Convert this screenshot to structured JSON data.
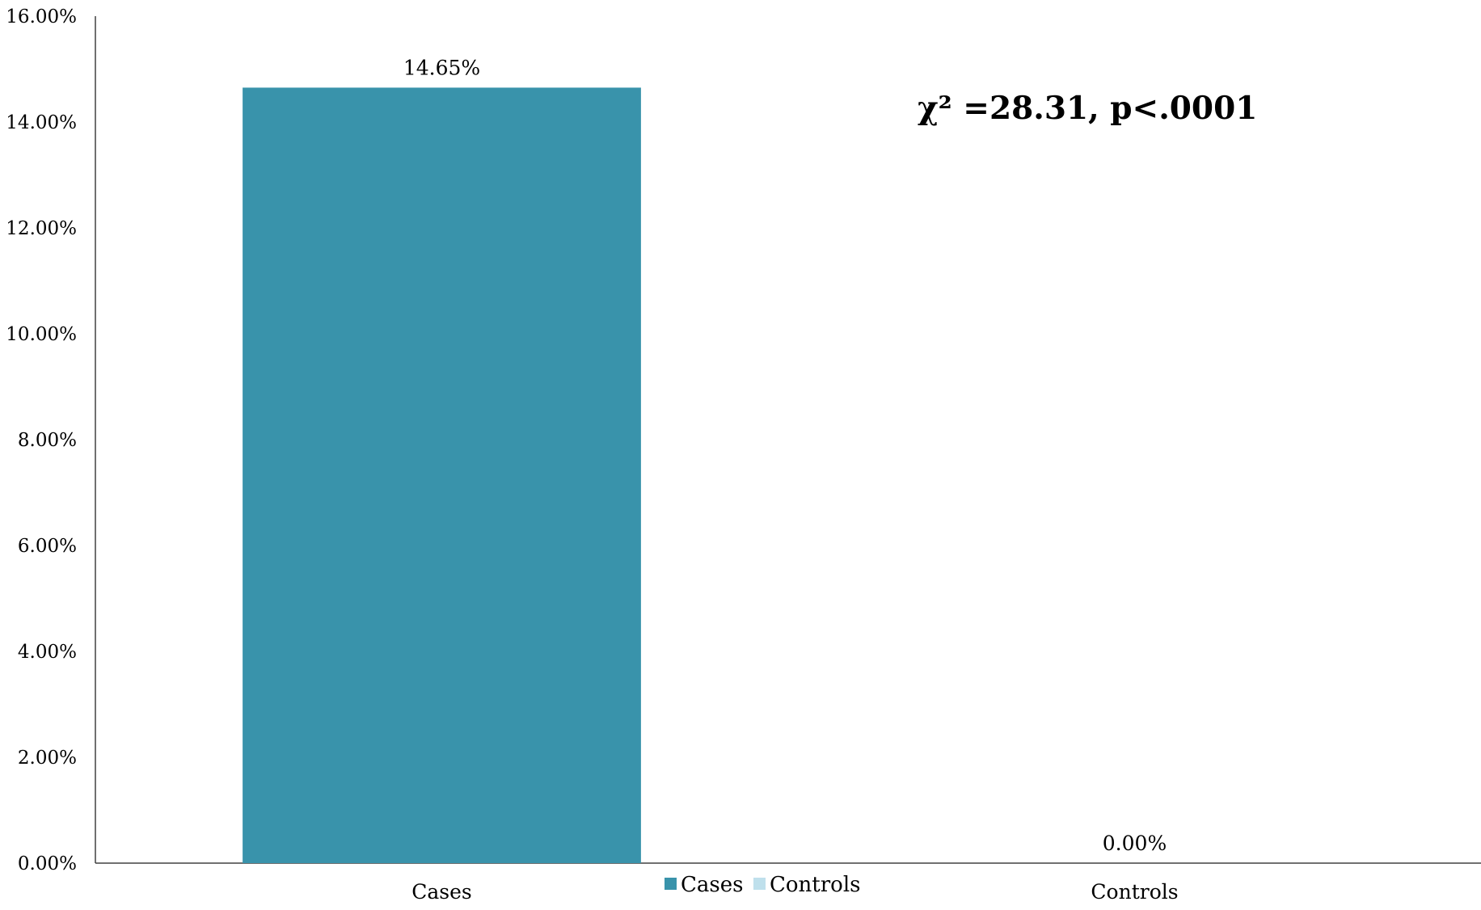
{
  "chart_data": {
    "type": "bar",
    "categories": [
      "Cases",
      "Controls"
    ],
    "values": [
      14.65,
      0.0
    ],
    "value_labels": [
      "14.65%",
      "0.00%"
    ],
    "y_ticks": [
      "0.00%",
      "2.00%",
      "4.00%",
      "6.00%",
      "8.00%",
      "10.00%",
      "12.00%",
      "14.00%",
      "16.00%"
    ],
    "ylim": [
      0,
      16
    ],
    "y_unit": "%",
    "grid": false,
    "legend_position": "bottom",
    "legend": [
      {
        "name": "Cases",
        "color": "#3993ab"
      },
      {
        "name": "Controls",
        "color": "#bfe0ec"
      }
    ],
    "bar_colors": [
      "#3993ab",
      "#bfe0ec"
    ],
    "annotation": "χ² =28.31, p<.0001"
  }
}
